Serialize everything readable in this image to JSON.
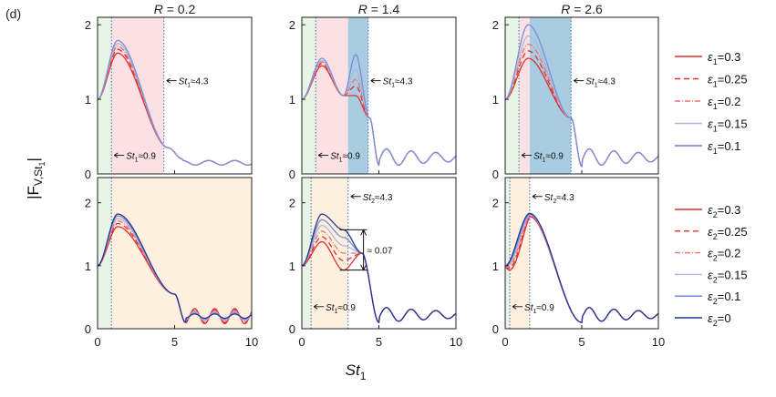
{
  "panel_label": "(d)",
  "ylabel_main": "|F",
  "ylabel_sub": "V,St",
  "ylabel_subsub": "1",
  "ylabel_end": "|",
  "xlabel_main": "St",
  "xlabel_sub": "1",
  "colors": {
    "red": "#e03030",
    "light_red": "#f07070",
    "lavender": "#b0b6dc",
    "blue_mid": "#7a8ed8",
    "blue": "#4a5fc8",
    "navy": "#28348e",
    "green_band": "#e8f4e6",
    "pink_band": "#fbe1e3",
    "blue_band": "#a8cce2",
    "cream_band": "#fdf0df"
  },
  "legend_top": [
    {
      "sym": "ε",
      "sub": "1",
      "val": "=0.3",
      "color": "#e03030",
      "dash": ""
    },
    {
      "sym": "ε",
      "sub": "1",
      "val": "=0.25",
      "color": "#e03030",
      "dash": "6,4"
    },
    {
      "sym": "ε",
      "sub": "1",
      "val": "=0.2",
      "color": "#f07070",
      "dash": "6,2,1,2"
    },
    {
      "sym": "ε",
      "sub": "1",
      "val": "=0.15",
      "color": "#b0b6dc",
      "dash": ""
    },
    {
      "sym": "ε",
      "sub": "1",
      "val": "=0.1",
      "color": "#6a7ed0",
      "dash": ""
    }
  ],
  "legend_bottom": [
    {
      "sym": "ε",
      "sub": "2",
      "val": "=0.3",
      "color": "#e03030",
      "dash": ""
    },
    {
      "sym": "ε",
      "sub": "2",
      "val": "=0.25",
      "color": "#e03030",
      "dash": "6,4"
    },
    {
      "sym": "ε",
      "sub": "2",
      "val": "=0.2",
      "color": "#f07070",
      "dash": "6,2,1,2"
    },
    {
      "sym": "ε",
      "sub": "2",
      "val": "=0.15",
      "color": "#b0b6dc",
      "dash": ""
    },
    {
      "sym": "ε",
      "sub": "2",
      "val": "=0.1",
      "color": "#6a7ed0",
      "dash": ""
    },
    {
      "sym": "ε",
      "sub": "2",
      "val": "=0",
      "color": "#28348e",
      "dash": ""
    }
  ],
  "chart_data": {
    "type": "line",
    "x_label": "St1",
    "y_label": "|F V,St1|",
    "xlim": [
      0,
      10
    ],
    "xticks": [
      0,
      5,
      10
    ],
    "panels": [
      {
        "id": "top-R02",
        "title": "R = 0.2",
        "title_pre": "R",
        "title_val": " = 0.2",
        "ylim": [
          0,
          2.1
        ],
        "yticks": [
          0,
          1,
          2
        ],
        "bands": [
          {
            "x0": 0,
            "x1": 0.9,
            "color": "green"
          },
          {
            "x0": 0.9,
            "x1": 4.3,
            "color": "pink"
          }
        ],
        "vlines": [
          0.9,
          4.3
        ],
        "annotations": [
          {
            "pre": "St",
            "sub": "1",
            "post": "≈4.3",
            "x": 4.3,
            "y": 1.25
          },
          {
            "pre": "St",
            "sub": "1",
            "post": "≈0.9",
            "x": 0.9,
            "y": 0.25
          }
        ],
        "series": [
          {
            "name": "ε1=0.3",
            "peak": 1.62
          },
          {
            "name": "ε1=0.25",
            "peak": 1.67
          },
          {
            "name": "ε1=0.2",
            "peak": 1.71
          },
          {
            "name": "ε1=0.15",
            "peak": 1.75
          },
          {
            "name": "ε1=0.1",
            "peak": 1.79
          }
        ]
      },
      {
        "id": "top-R14",
        "title": "R = 1.4",
        "title_pre": "R",
        "title_val": " = 1.4",
        "ylim": [
          0,
          2.1
        ],
        "yticks": [
          0,
          1,
          2
        ],
        "bands": [
          {
            "x0": 0,
            "x1": 0.9,
            "color": "green"
          },
          {
            "x0": 0.9,
            "x1": 3.0,
            "color": "pink"
          },
          {
            "x0": 3.0,
            "x1": 4.3,
            "color": "blue"
          }
        ],
        "vlines": [
          0.9,
          4.3
        ],
        "annotations": [
          {
            "pre": "St",
            "sub": "1",
            "post": "≈4.3",
            "x": 4.3,
            "y": 1.25
          },
          {
            "pre": "St",
            "sub": "1",
            "post": "≈0.9",
            "x": 0.9,
            "y": 0.25
          }
        ],
        "series": [
          {
            "name": "ε1=0.3",
            "peak": 1.45,
            "hump": 1.05
          },
          {
            "name": "ε1=0.25",
            "peak": 1.48,
            "hump": 1.18
          },
          {
            "name": "ε1=0.2",
            "peak": 1.5,
            "hump": 1.27
          },
          {
            "name": "ε1=0.15",
            "peak": 1.52,
            "hump": 1.4
          },
          {
            "name": "ε1=0.1",
            "peak": 1.55,
            "hump": 1.6
          }
        ]
      },
      {
        "id": "top-R26",
        "title": "R = 2.6",
        "title_pre": "R",
        "title_val": " = 2.6",
        "ylim": [
          0,
          2.1
        ],
        "yticks": [
          0,
          1,
          2
        ],
        "bands": [
          {
            "x0": 0,
            "x1": 0.9,
            "color": "green"
          },
          {
            "x0": 0.9,
            "x1": 1.6,
            "color": "pink"
          },
          {
            "x0": 1.6,
            "x1": 4.3,
            "color": "blue"
          }
        ],
        "vlines": [
          0.9,
          4.3
        ],
        "annotations": [
          {
            "pre": "St",
            "sub": "1",
            "post": "≈4.3",
            "x": 4.3,
            "y": 1.25
          },
          {
            "pre": "St",
            "sub": "1",
            "post": "≈0.9",
            "x": 0.9,
            "y": 0.25
          }
        ],
        "series": [
          {
            "name": "ε1=0.3",
            "peak": 1.55
          },
          {
            "name": "ε1=0.25",
            "peak": 1.65
          },
          {
            "name": "ε1=0.2",
            "peak": 1.74
          },
          {
            "name": "ε1=0.15",
            "peak": 1.85
          },
          {
            "name": "ε1=0.1",
            "peak": 2.0
          }
        ]
      },
      {
        "id": "bottom-R02",
        "ylim": [
          0,
          2.4
        ],
        "yticks": [
          0,
          1,
          2
        ],
        "bands": [
          {
            "x0": 0,
            "x1": 0.9,
            "color": "green"
          },
          {
            "x0": 0.9,
            "x1": 10,
            "color": "cream"
          }
        ],
        "vlines": [
          0.9
        ],
        "annotations": [],
        "series": [
          {
            "name": "ε2=0.3",
            "peak": 1.62
          },
          {
            "name": "ε2=0.25",
            "peak": 1.67
          },
          {
            "name": "ε2=0.2",
            "peak": 1.71
          },
          {
            "name": "ε2=0.15",
            "peak": 1.75
          },
          {
            "name": "ε2=0.1",
            "peak": 1.79
          },
          {
            "name": "ε2=0",
            "peak": 1.82
          }
        ]
      },
      {
        "id": "bottom-R14",
        "ylim": [
          0,
          2.4
        ],
        "yticks": [
          0,
          1,
          2
        ],
        "bands": [
          {
            "x0": 0,
            "x1": 0.6,
            "color": "green"
          },
          {
            "x0": 0.6,
            "x1": 3.0,
            "color": "cream"
          }
        ],
        "vlines": [
          0.6,
          3.0
        ],
        "annotations": [
          {
            "pre": "St",
            "sub": "2",
            "post": "≈4.3",
            "x": 3.0,
            "y": 2.1
          },
          {
            "pre": "St",
            "sub": "1",
            "post": "≈0.9",
            "x": 0.6,
            "y": 0.35
          }
        ],
        "bracket": {
          "x": 4.0,
          "y_top": 1.57,
          "y_bottom": 0.93,
          "label": "≈ 0.07"
        },
        "series": [
          {
            "name": "ε2=0.3",
            "peak": 1.38,
            "trough": 0.93
          },
          {
            "name": "ε2=0.25",
            "peak": 1.46,
            "trough": 1.08
          },
          {
            "name": "ε2=0.2",
            "peak": 1.55,
            "trough": 1.2
          },
          {
            "name": "ε2=0.15",
            "peak": 1.64,
            "trough": 1.32
          },
          {
            "name": "ε2=0.1",
            "peak": 1.73,
            "trough": 1.45
          },
          {
            "name": "ε2=0",
            "peak": 1.82,
            "trough": 1.57
          }
        ]
      },
      {
        "id": "bottom-R26",
        "ylim": [
          0,
          2.4
        ],
        "yticks": [
          0,
          1,
          2
        ],
        "bands": [
          {
            "x0": 0,
            "x1": 0.3,
            "color": "green"
          },
          {
            "x0": 0.3,
            "x1": 1.6,
            "color": "cream"
          }
        ],
        "vlines": [
          0.3,
          1.6
        ],
        "annotations": [
          {
            "pre": "St",
            "sub": "2",
            "post": "≈4.3",
            "x": 1.6,
            "y": 2.1
          },
          {
            "pre": "St",
            "sub": "1",
            "post": "≈0.9",
            "x": 0.3,
            "y": 0.35
          }
        ],
        "series": [
          {
            "name": "ε2=0.3",
            "peak": 1.78
          },
          {
            "name": "ε2=0.25",
            "peak": 1.79
          },
          {
            "name": "ε2=0.2",
            "peak": 1.8
          },
          {
            "name": "ε2=0.15",
            "peak": 1.81
          },
          {
            "name": "ε2=0.1",
            "peak": 1.82
          },
          {
            "name": "ε2=0",
            "peak": 1.83
          }
        ]
      }
    ]
  }
}
